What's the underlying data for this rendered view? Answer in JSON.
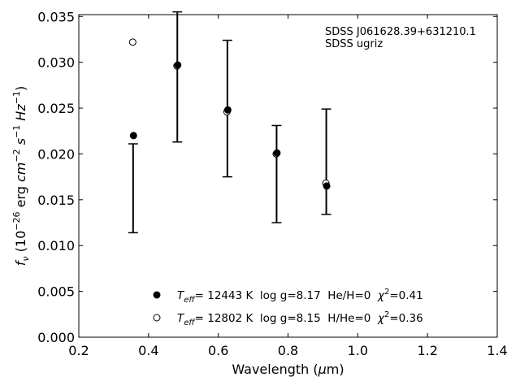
{
  "chart_data": {
    "type": "scatter",
    "xlabel": "Wavelength (μm)",
    "ylabel": "f_ν (10^-26 erg cm^-2 s^-1 Hz^-1)",
    "xlim": [
      0.2,
      1.4
    ],
    "ylim": [
      0.0,
      0.0352
    ],
    "xticks": [
      "0.2",
      "0.4",
      "0.6",
      "0.8",
      "1.0",
      "1.2",
      "1.4"
    ],
    "yticks": [
      "0.000",
      "0.005",
      "0.010",
      "0.015",
      "0.020",
      "0.025",
      "0.030",
      "0.035"
    ],
    "grid": false,
    "annotation": [
      "SDSS J061628.39+631210.1",
      "SDSS ugriz"
    ],
    "observed": {
      "x": [
        0.3557,
        0.4825,
        0.6261,
        0.7672,
        0.9097
      ],
      "y_upper": [
        0.0211,
        0.0355,
        0.0324,
        0.0231,
        0.0249
      ],
      "y_lower": [
        0.0114,
        0.0213,
        0.0175,
        0.0125,
        0.0134
      ]
    },
    "series": [
      {
        "marker": "filled-circle",
        "label": "T_eff= 12443 K  log g=8.17  He/H=0  χ²=0.41",
        "x": [
          0.3557,
          0.4825,
          0.6261,
          0.7672,
          0.9097
        ],
        "y": [
          0.022,
          0.0297,
          0.0248,
          0.0201,
          0.0165
        ]
      },
      {
        "marker": "open-circle",
        "label": "T_eff= 12802 K  log g=8.15  H/He=0  χ²=0.36",
        "x": [
          0.3557,
          0.4825,
          0.6261,
          0.7672,
          0.9097
        ],
        "y": [
          0.0322,
          0.0296,
          0.0246,
          0.02,
          0.0168
        ]
      }
    ],
    "legend_position": "bottom-center"
  }
}
